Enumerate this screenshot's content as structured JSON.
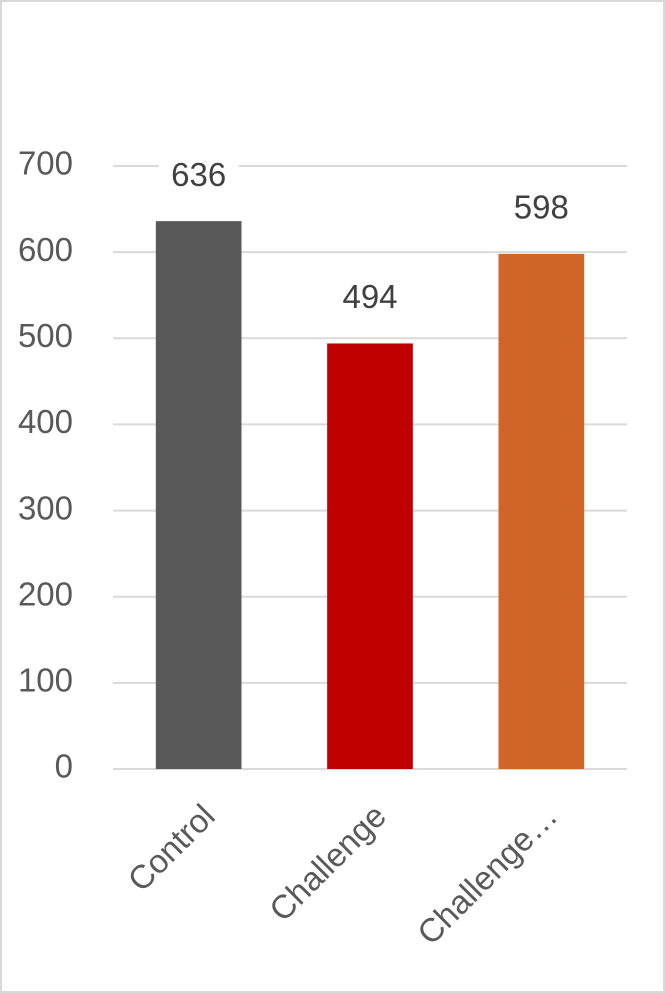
{
  "chart_data": {
    "type": "bar",
    "categories": [
      "Control",
      "Challenge",
      "Challenge…"
    ],
    "values": [
      636,
      494,
      598
    ],
    "colors": [
      "#595959",
      "#c00000",
      "#d06528"
    ],
    "ylim": [
      0,
      700
    ],
    "yticks": [
      0,
      100,
      200,
      300,
      400,
      500,
      600,
      700
    ],
    "grid": true
  }
}
